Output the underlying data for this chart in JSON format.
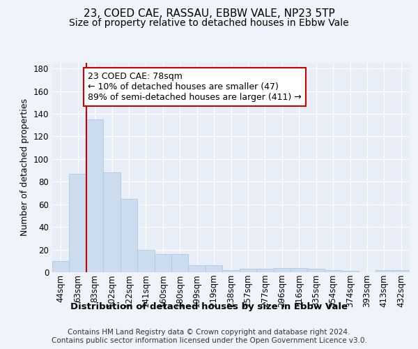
{
  "title": "23, COED CAE, RASSAU, EBBW VALE, NP23 5TP",
  "subtitle": "Size of property relative to detached houses in Ebbw Vale",
  "xlabel": "Distribution of detached houses by size in Ebbw Vale",
  "ylabel": "Number of detached properties",
  "footnote": "Contains HM Land Registry data © Crown copyright and database right 2024.\nContains public sector information licensed under the Open Government Licence v3.0.",
  "bar_labels": [
    "44sqm",
    "63sqm",
    "83sqm",
    "102sqm",
    "122sqm",
    "141sqm",
    "160sqm",
    "180sqm",
    "199sqm",
    "219sqm",
    "238sqm",
    "257sqm",
    "277sqm",
    "296sqm",
    "316sqm",
    "335sqm",
    "354sqm",
    "374sqm",
    "393sqm",
    "413sqm",
    "432sqm"
  ],
  "bar_values": [
    10,
    87,
    135,
    88,
    65,
    20,
    16,
    16,
    6,
    6,
    2,
    3,
    3,
    4,
    4,
    3,
    2,
    1,
    0,
    2,
    2
  ],
  "bar_color": "#ccdcef",
  "bar_edge_color": "#b0c8e4",
  "vline_x": 1.5,
  "vline_color": "#cc0000",
  "annotation_line1": "23 COED CAE: 78sqm",
  "annotation_line2": "← 10% of detached houses are smaller (47)",
  "annotation_line3": "89% of semi-detached houses are larger (411) →",
  "annotation_box_color": "#cc0000",
  "ylim": [
    0,
    185
  ],
  "yticks": [
    0,
    20,
    40,
    60,
    80,
    100,
    120,
    140,
    160,
    180
  ],
  "bg_color": "#f0f4fa",
  "plot_bg_color": "#e8eef8",
  "grid_color": "#ffffff",
  "title_fontsize": 11,
  "subtitle_fontsize": 10,
  "xlabel_fontsize": 9.5,
  "ylabel_fontsize": 9,
  "tick_fontsize": 8.5,
  "annot_fontsize": 9,
  "footnote_fontsize": 7.5
}
